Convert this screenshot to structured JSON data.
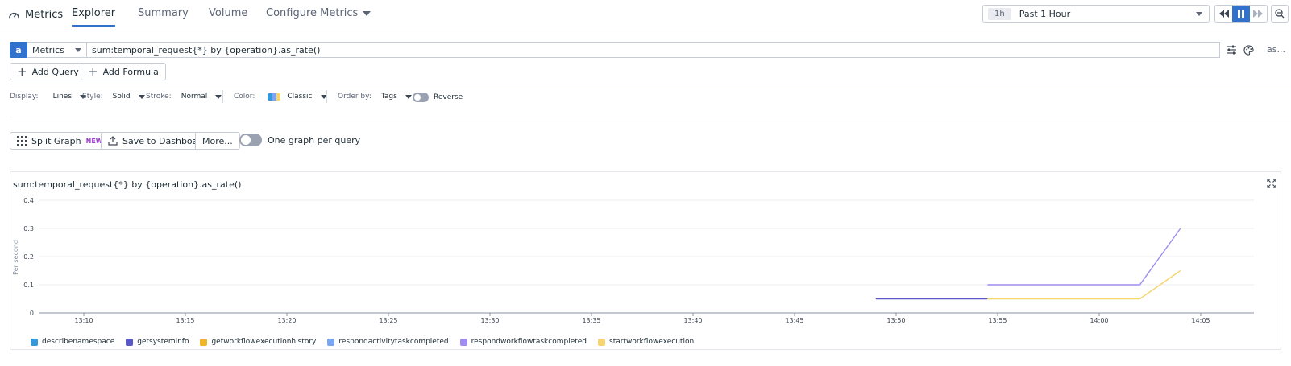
{
  "nav": {
    "brand": "Metrics",
    "tabs": [
      {
        "label": "Explorer",
        "active": true
      },
      {
        "label": "Summary",
        "active": false
      },
      {
        "label": "Volume",
        "active": false
      },
      {
        "label": "Configure Metrics",
        "active": false
      }
    ],
    "time_badge": "1h",
    "time_label": "Past 1 Hour"
  },
  "query": {
    "letter": "a",
    "source": "Metrics",
    "expression": "sum:temporal_request{*} by {operation}.as_rate()",
    "alias_label": "as...",
    "add_query": "Add Query",
    "add_formula": "Add Formula"
  },
  "display": {
    "display_label": "Display:",
    "display_value": "Lines",
    "style_label": "Style:",
    "style_value": "Solid",
    "stroke_label": "Stroke:",
    "stroke_value": "Normal",
    "color_label": "Color:",
    "color_value": "Classic",
    "order_label": "Order by:",
    "order_value": "Tags",
    "reverse_label": "Reverse"
  },
  "actions": {
    "split_graph": "Split Graph",
    "split_badge": "NEW",
    "save_dashboard": "Save to Dashboard",
    "more": "More...",
    "one_graph": "One graph per query"
  },
  "colors": {
    "accent": "#3172cc",
    "describenamespace": "#3498db",
    "getsysteminfo": "#5a57c6",
    "getworkflowexecutionhistory": "#f0b429",
    "respondactivitytaskcompleted": "#7aa5f0",
    "respondworkflowtaskcompleted": "#a18cf0",
    "startworkflowexecution": "#f6d56f"
  },
  "chart_data": {
    "type": "line",
    "title": "sum:temporal_request{*} by {operation}.as_rate()",
    "ylabel": "Per second",
    "xlabel": "",
    "ylim": [
      0,
      0.4
    ],
    "yticks": [
      "0",
      "0.1",
      "0.2",
      "0.3",
      "0.4"
    ],
    "xticks": [
      "13:10",
      "13:15",
      "13:20",
      "13:25",
      "13:30",
      "13:35",
      "13:40",
      "13:45",
      "13:50",
      "13:55",
      "14:00",
      "14:05"
    ],
    "grid": true,
    "legend": "bottom-left",
    "series": [
      {
        "name": "describenamespace",
        "points": []
      },
      {
        "name": "getsysteminfo",
        "points": [
          [
            "13:49",
            0.05
          ],
          [
            "13:54:30",
            0.05
          ]
        ]
      },
      {
        "name": "getworkflowexecutionhistory",
        "points": []
      },
      {
        "name": "respondactivitytaskcompleted",
        "points": []
      },
      {
        "name": "respondworkflowtaskcompleted",
        "points": [
          [
            "13:54:30",
            0.1
          ],
          [
            "14:02",
            0.1
          ],
          [
            "14:04",
            0.3
          ]
        ]
      },
      {
        "name": "startworkflowexecution",
        "points": [
          [
            "13:54:30",
            0.05
          ],
          [
            "14:02",
            0.05
          ],
          [
            "14:04",
            0.15
          ]
        ]
      }
    ]
  }
}
